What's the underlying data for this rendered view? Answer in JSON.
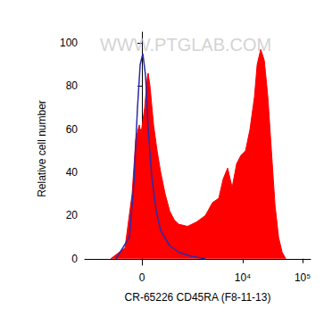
{
  "chart_data": {
    "type": "area",
    "x_label": "CR-65226 CD45RA (F8-11-13)",
    "y_label": "Relative cell number",
    "annotations": [
      "WWW.PTGLAB.COM"
    ],
    "xlim": [
      -1840,
      136000
    ],
    "xticks": [
      0,
      {
        "value": 10000,
        "label": "10⁴"
      },
      {
        "value": 100000,
        "label": "10⁵"
      }
    ],
    "ylim": [
      -3,
      105
    ],
    "yticks": [
      0,
      20,
      40,
      60,
      80,
      100
    ],
    "grid": false,
    "series": [
      {
        "type": "area",
        "color": "#ff0000",
        "x": [
          -624,
          -289,
          -160,
          -100,
          -43,
          -14,
          43,
          86,
          100,
          130,
          191,
          255,
          325,
          420,
          532,
          656,
          800,
          1157,
          1656,
          2350,
          3105,
          3957,
          4700,
          5584,
          6637,
          7888,
          9359,
          11110,
          13200,
          15680,
          17390,
          19950,
          22880,
          26270,
          30150,
          34570,
          39650,
          45510,
          52240
        ],
        "values": [
          0,
          5,
          30,
          55,
          62,
          58,
          70,
          84,
          86,
          80,
          62,
          50,
          40,
          30,
          22,
          18,
          16,
          15,
          17,
          20,
          26,
          28,
          37,
          42,
          33,
          44,
          48,
          50,
          60,
          75,
          90,
          97,
          92,
          75,
          50,
          25,
          10,
          3,
          0
        ]
      },
      {
        "type": "line",
        "color": "#2b2ba8",
        "x": [
          -483,
          -207,
          -130,
          -71,
          -28,
          14,
          57,
          100,
          160,
          239,
          325,
          532,
          800,
          1384,
          2350
        ],
        "values": [
          0,
          10,
          35,
          70,
          90,
          95,
          85,
          60,
          38,
          22,
          13,
          6,
          3,
          1,
          0
        ]
      }
    ]
  }
}
